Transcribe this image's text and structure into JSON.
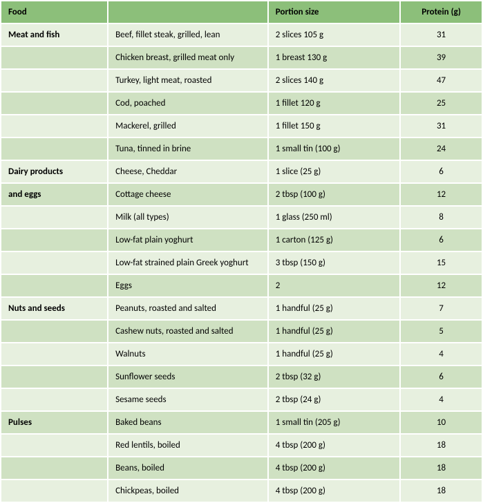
{
  "colors": {
    "header_bg": "#8cbf7a",
    "row_odd_bg": "#e7f0df",
    "row_even_bg": "#cfe1c2",
    "text": "#000000"
  },
  "fontsize": 13,
  "columns": {
    "food": "Food",
    "item": "",
    "portion": "Portion size",
    "protein": "Protein (g)"
  },
  "groups": [
    {
      "category_lines": [
        "Meat and fish"
      ],
      "rows": [
        {
          "item": "Beef, fillet steak, grilled, lean",
          "portion": "2 slices 105 g",
          "protein": "31"
        },
        {
          "item": "Chicken breast, grilled meat only",
          "portion": "1 breast 130 g",
          "protein": "39"
        },
        {
          "item": "Turkey, light meat, roasted",
          "portion": "2 slices 140 g",
          "protein": "47"
        },
        {
          "item": "Cod, poached",
          "portion": "1 fillet 120 g",
          "protein": "25"
        },
        {
          "item": "Mackerel, grilled",
          "portion": "1 fillet 150 g",
          "protein": "31"
        },
        {
          "item": "Tuna, tinned in brine",
          "portion": "1 small tin (100 g)",
          "protein": "24"
        }
      ]
    },
    {
      "category_lines": [
        "Dairy products",
        "and eggs"
      ],
      "rows": [
        {
          "item": "Cheese, Cheddar",
          "portion": "1 slice (25 g)",
          "protein": "6"
        },
        {
          "item": "Cottage cheese",
          "portion": "2 tbsp (100 g)",
          "protein": "12"
        },
        {
          "item": "Milk (all types)",
          "portion": "1 glass (250 ml)",
          "protein": "8"
        },
        {
          "item": "Low-fat plain yoghurt",
          "portion": "1 carton (125 g)",
          "protein": "6"
        },
        {
          "item": "Low-fat strained plain Greek yoghurt",
          "portion": "3 tbsp (150 g)",
          "protein": "15"
        },
        {
          "item": "Eggs",
          "portion": "2",
          "protein": "12"
        }
      ]
    },
    {
      "category_lines": [
        "Nuts and seeds"
      ],
      "rows": [
        {
          "item": "Peanuts, roasted and salted",
          "portion": "1 handful (25 g)",
          "protein": "7"
        },
        {
          "item": "Cashew nuts, roasted and salted",
          "portion": "1 handful (25 g)",
          "protein": "5"
        },
        {
          "item": "Walnuts",
          "portion": "1 handful (25 g)",
          "protein": "4"
        },
        {
          "item": "Sunflower seeds",
          "portion": "2 tbsp (32 g)",
          "protein": "6"
        },
        {
          "item": "Sesame seeds",
          "portion": "2 tbsp (24 g)",
          "protein": "4"
        }
      ]
    },
    {
      "category_lines": [
        "Pulses"
      ],
      "rows": [
        {
          "item": "Baked beans",
          "portion": "1 small tin (205 g)",
          "protein": "10"
        },
        {
          "item": "Red lentils, boiled",
          "portion": "4 tbsp (200 g)",
          "protein": "18"
        },
        {
          "item": "Beans, boiled",
          "portion": "4 tbsp (200 g)",
          "protein": "18"
        },
        {
          "item": "Chickpeas, boiled",
          "portion": "4 tbsp (200 g)",
          "protein": "18"
        }
      ]
    }
  ]
}
